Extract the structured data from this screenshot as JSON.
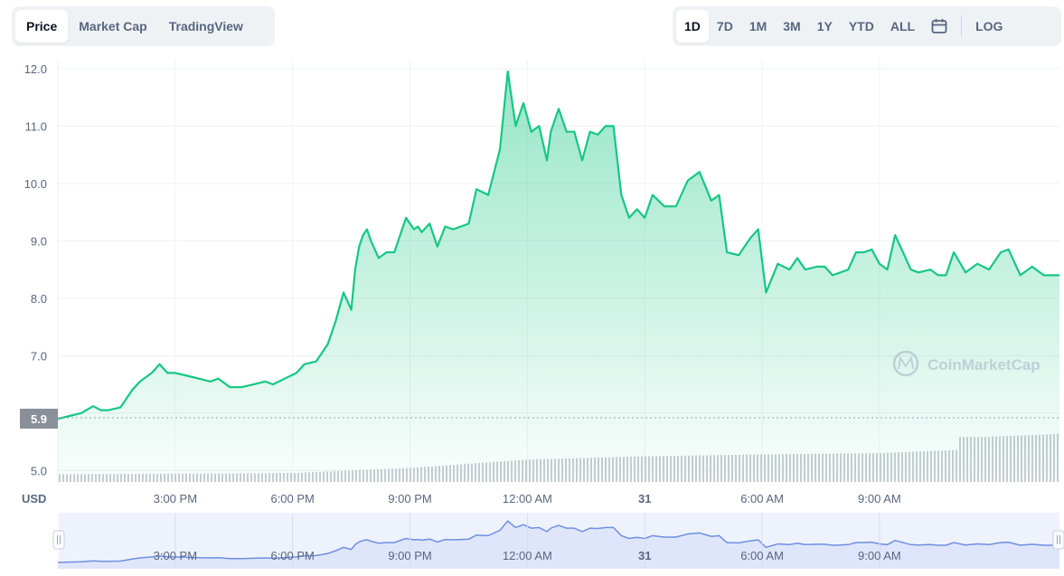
{
  "tabs": {
    "left": [
      "Price",
      "Market Cap",
      "TradingView"
    ],
    "ranges": [
      "1D",
      "7D",
      "1M",
      "3M",
      "1Y",
      "YTD",
      "ALL"
    ],
    "log_label": "LOG",
    "active_left": "Price",
    "active_range": "1D"
  },
  "icons": {
    "calendar": "calendar-icon",
    "watermark": "coinmarketcap-logo-icon"
  },
  "watermark": "CoinMarketCap",
  "current_price_label": "5.9",
  "colors": {
    "line": "#16c784",
    "fill_top": "#16c784",
    "volume": "#c9cdd4",
    "navigator_line": "#6f8fe0",
    "navigator_fill": "#dfe6fb"
  },
  "chart_data": {
    "type": "area",
    "xlabel": "",
    "ylabel": "USD",
    "ylim": [
      4.8,
      12.25
    ],
    "yticks": [
      5.0,
      6.0,
      7.0,
      8.0,
      9.0,
      10.0,
      11.0,
      12.0
    ],
    "ytick_labels": [
      "5.0",
      "",
      "7.0",
      "8.0",
      "9.0",
      "10.0",
      "11.0",
      "12.0"
    ],
    "xlim": [
      0,
      25.6
    ],
    "xticks": [
      3,
      6,
      9,
      12,
      15,
      18,
      21
    ],
    "xtick_labels": [
      "3:00 PM",
      "6:00 PM",
      "9:00 PM",
      "12:00 AM",
      "31",
      "6:00 AM",
      "9:00 AM"
    ],
    "grid": true,
    "series": [
      {
        "name": "",
        "x": [
          0,
          0.3,
          0.6,
          0.9,
          1.1,
          1.3,
          1.6,
          1.9,
          2.1,
          2.4,
          2.6,
          2.8,
          3.0,
          3.3,
          3.6,
          3.9,
          4.1,
          4.4,
          4.7,
          5.0,
          5.3,
          5.5,
          5.8,
          6.1,
          6.3,
          6.6,
          6.9,
          7.1,
          7.3,
          7.5,
          7.6,
          7.7,
          7.8,
          7.9,
          8.0,
          8.2,
          8.4,
          8.6,
          8.7,
          8.9,
          9.1,
          9.2,
          9.3,
          9.5,
          9.7,
          9.9,
          10.1,
          10.3,
          10.5,
          10.7,
          11.0,
          11.3,
          11.5,
          11.7,
          11.9,
          12.1,
          12.3,
          12.5,
          12.6,
          12.8,
          13.0,
          13.2,
          13.4,
          13.6,
          13.8,
          14.0,
          14.2,
          14.4,
          14.6,
          14.8,
          15.0,
          15.2,
          15.5,
          15.8,
          16.1,
          16.4,
          16.7,
          16.9,
          17.1,
          17.4,
          17.7,
          17.9,
          18.1,
          18.4,
          18.7,
          18.9,
          19.1,
          19.4,
          19.6,
          19.8,
          20.0,
          20.2,
          20.4,
          20.6,
          20.8,
          21.0,
          21.2,
          21.4,
          21.6,
          21.8,
          22.0,
          22.3,
          22.5,
          22.7,
          22.9,
          23.2,
          23.5,
          23.8,
          24.1,
          24.3,
          24.6,
          24.9,
          25.2,
          25.6
        ],
        "y": [
          5.9,
          5.95,
          6.0,
          6.12,
          6.05,
          6.05,
          6.1,
          6.4,
          6.55,
          6.7,
          6.85,
          6.7,
          6.7,
          6.65,
          6.6,
          6.55,
          6.6,
          6.45,
          6.45,
          6.5,
          6.55,
          6.5,
          6.6,
          6.7,
          6.85,
          6.9,
          7.2,
          7.6,
          8.1,
          7.8,
          8.5,
          8.9,
          9.1,
          9.2,
          9.0,
          8.7,
          8.8,
          8.8,
          9.0,
          9.4,
          9.2,
          9.25,
          9.15,
          9.3,
          8.9,
          9.25,
          9.2,
          9.25,
          9.3,
          9.9,
          9.8,
          10.6,
          11.95,
          11.0,
          11.4,
          10.9,
          11.0,
          10.4,
          10.9,
          11.3,
          10.9,
          10.9,
          10.4,
          10.9,
          10.85,
          11.0,
          11.0,
          9.8,
          9.4,
          9.55,
          9.4,
          9.8,
          9.6,
          9.6,
          10.05,
          10.2,
          9.7,
          9.8,
          8.8,
          8.75,
          9.05,
          9.2,
          8.1,
          8.6,
          8.5,
          8.7,
          8.5,
          8.55,
          8.55,
          8.4,
          8.45,
          8.5,
          8.8,
          8.8,
          8.85,
          8.6,
          8.5,
          9.1,
          8.8,
          8.5,
          8.45,
          8.5,
          8.4,
          8.4,
          8.8,
          8.45,
          8.6,
          8.5,
          8.8,
          8.85,
          8.4,
          8.55,
          8.4,
          8.4
        ],
        "color": "#16c784"
      }
    ],
    "volume_series": {
      "name": "",
      "note_units": "relative",
      "x": [
        0,
        3,
        6,
        9,
        12,
        15,
        18,
        21,
        23,
        23.6,
        25.6
      ],
      "y": [
        0.12,
        0.13,
        0.14,
        0.22,
        0.35,
        0.4,
        0.43,
        0.45,
        0.5,
        0.7,
        0.75
      ]
    }
  }
}
